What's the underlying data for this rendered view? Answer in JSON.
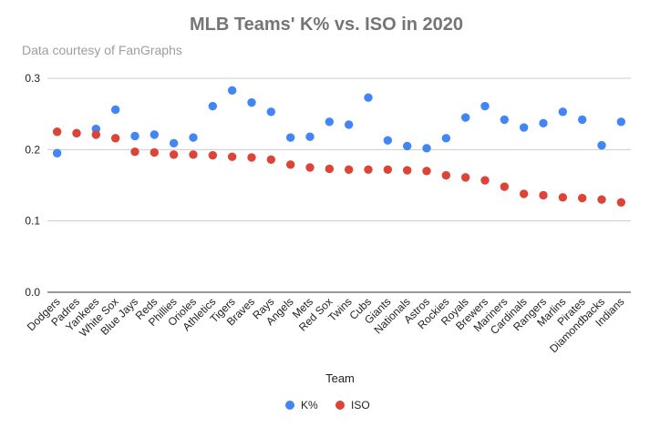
{
  "chart_data": {
    "type": "scatter",
    "title": "MLB Teams' K% vs. ISO in 2020",
    "subtitle": "Data courtesy of FanGraphs",
    "xlabel": "Team",
    "ylabel": "",
    "ylim": [
      0,
      0.3
    ],
    "yticks": [
      "0.0",
      "0.1",
      "0.2",
      "0.3"
    ],
    "grid": true,
    "legend_position": "bottom",
    "categories": [
      "Dodgers",
      "Padres",
      "Yankees",
      "White Sox",
      "Blue Jays",
      "Reds",
      "Phillies",
      "Orioles",
      "Athletics",
      "Tigers",
      "Braves",
      "Rays",
      "Angels",
      "Mets",
      "Red Sox",
      "Twins",
      "Cubs",
      "Giants",
      "Nationals",
      "Astros",
      "Rockies",
      "Royals",
      "Brewers",
      "Mariners",
      "Cardinals",
      "Rangers",
      "Marlins",
      "Pirates",
      "Diamondbacks",
      "Indians"
    ],
    "series": [
      {
        "name": "K%",
        "color": "#4285f4",
        "values": [
          0.195,
          0.223,
          0.229,
          0.256,
          0.219,
          0.221,
          0.209,
          0.217,
          0.261,
          0.283,
          0.266,
          0.253,
          0.217,
          0.218,
          0.239,
          0.235,
          0.273,
          0.213,
          0.205,
          0.202,
          0.216,
          0.245,
          0.261,
          0.242,
          0.231,
          0.237,
          0.253,
          0.242,
          0.206,
          0.239
        ]
      },
      {
        "name": "ISO",
        "color": "#db4437",
        "values": [
          0.225,
          0.223,
          0.221,
          0.216,
          0.197,
          0.196,
          0.193,
          0.193,
          0.192,
          0.19,
          0.189,
          0.186,
          0.179,
          0.175,
          0.173,
          0.172,
          0.172,
          0.172,
          0.171,
          0.17,
          0.164,
          0.161,
          0.157,
          0.148,
          0.138,
          0.136,
          0.133,
          0.132,
          0.13,
          0.126
        ]
      }
    ]
  },
  "colors": {
    "title": "#757575",
    "subtitle": "#9e9e9e",
    "grid": "#cccccc",
    "baseline": "#333333",
    "axis_text": "#222222"
  }
}
